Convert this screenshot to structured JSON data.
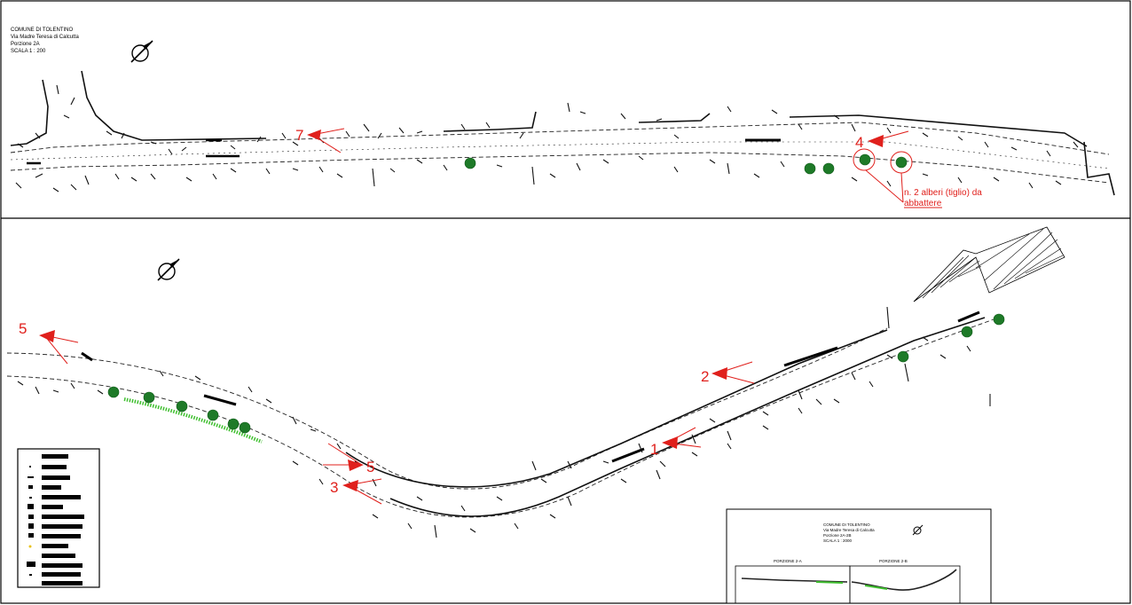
{
  "top_panel": {
    "title_block": [
      "COMUNE DI TOLENTINO",
      "Via Madre Teresa di Calcutta",
      "Porzione 2A",
      "SCALA 1 : 200"
    ],
    "markers": [
      {
        "label": "7"
      },
      {
        "label": "4"
      }
    ],
    "note": [
      "n. 2 alberi (tiglio) da",
      "abbattere"
    ]
  },
  "bottom_panel": {
    "markers": [
      {
        "label": "5"
      },
      {
        "label": "2"
      },
      {
        "label": "1"
      },
      {
        "label": "5"
      },
      {
        "label": "3"
      }
    ],
    "inset": {
      "title_block": [
        "COMUNE DI TOLENTINO",
        "Via Madre Teresa di Calcutta",
        "Porzione 2A-2B",
        "SCALA 1 : 2000"
      ],
      "portion_a": "PORZIONE 2-A",
      "portion_b": "PORZIONE 2-B"
    }
  },
  "colors": {
    "marker": "#e0201c",
    "tree": "#1e7a28",
    "hedge": "#3fbf2f",
    "linework": "#111111"
  },
  "icons": [
    "north-arrow-icon",
    "north-arrow-icon"
  ]
}
